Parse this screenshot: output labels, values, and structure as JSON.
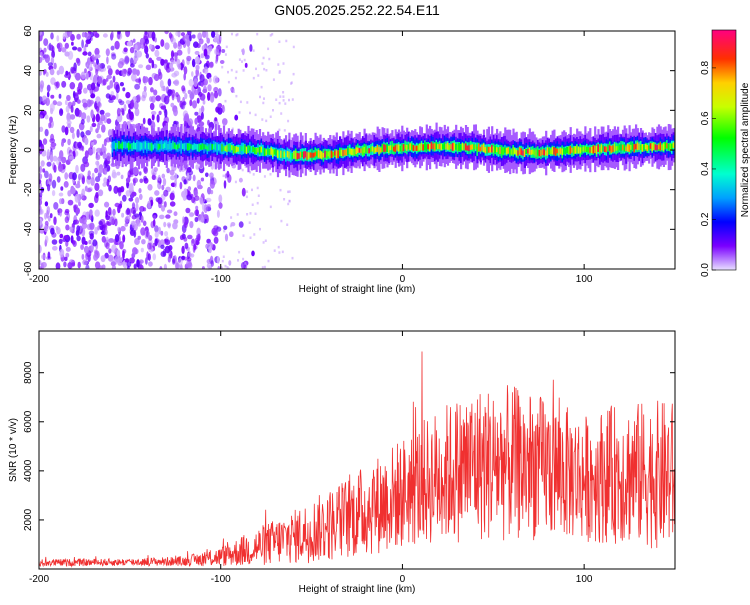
{
  "title": "GN05.2025.252.22.54.E11",
  "chart_data": [
    {
      "type": "heatmap",
      "xlabel": "Height of straight line (km)",
      "ylabel": "Frequency (Hz)",
      "xlim": [
        -200,
        150
      ],
      "ylim": [
        -60,
        60
      ],
      "xticks": [
        -200,
        -100,
        0,
        100
      ],
      "yticks": [
        -60,
        -40,
        -20,
        0,
        20,
        40,
        60
      ],
      "colorbar": {
        "label": "Normalized spectral amplitude",
        "range": [
          0,
          0.95
        ],
        "ticks": [
          0.0,
          0.2,
          0.4,
          0.6,
          0.8
        ],
        "tick_labels": [
          "0.0",
          "0.2",
          "0.4",
          "0.6",
          "0.8"
        ]
      },
      "ridge": {
        "x": [
          -160,
          -130,
          -100,
          -80,
          -60,
          -40,
          -20,
          0,
          20,
          40,
          60,
          80,
          100,
          120,
          150
        ],
        "y": [
          2,
          2,
          1,
          0,
          -3,
          -2,
          0,
          1,
          2,
          1,
          -1,
          -1,
          0,
          1,
          2
        ]
      }
    },
    {
      "type": "line",
      "xlabel": "Height of straight line (km)",
      "ylabel": "SNR (10 * v/v)",
      "xlim": [
        -200,
        150
      ],
      "ylim": [
        0,
        9700
      ],
      "xticks": [
        -200,
        -100,
        0,
        100
      ],
      "yticks": [
        2000,
        4000,
        6000,
        8000
      ],
      "series_color": "#f03030",
      "envelope": {
        "x": [
          -200,
          -150,
          -120,
          -100,
          -80,
          -60,
          -40,
          -20,
          0,
          20,
          40,
          60,
          80,
          100,
          120,
          150
        ],
        "mean": [
          250,
          280,
          320,
          500,
          900,
          1300,
          1800,
          2400,
          3100,
          3800,
          4300,
          4300,
          4100,
          3700,
          3900,
          3800
        ],
        "amplitude": [
          150,
          150,
          200,
          400,
          800,
          1100,
          1500,
          1900,
          2300,
          2800,
          3200,
          3200,
          2900,
          2600,
          2900,
          3100
        ]
      }
    }
  ]
}
